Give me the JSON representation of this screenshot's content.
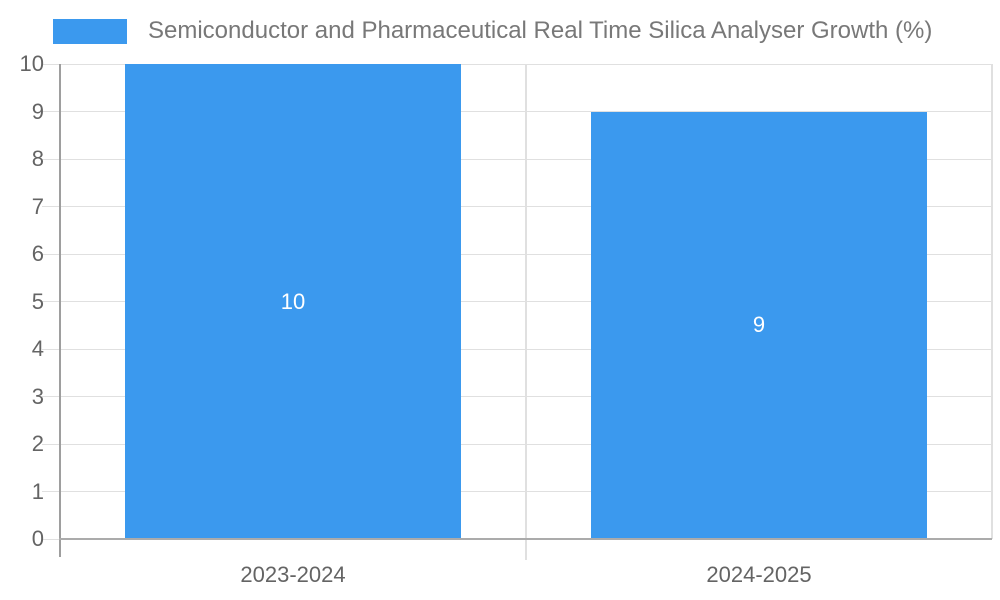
{
  "window": {
    "background": "#FFFFFF"
  },
  "legend": {
    "label": "Semiconductor and Pharmaceutical Real Time Silica Analyser Growth (%)",
    "position": "top-left"
  },
  "chart_data": {
    "type": "bar",
    "categories": [
      "2023-2024",
      "2024-2025"
    ],
    "values": [
      10,
      9
    ],
    "bar_labels": [
      "10",
      "9"
    ],
    "series": [
      {
        "name": "Semiconductor and Pharmaceutical Real Time Silica Analyser Growth (%)",
        "values": [
          10,
          9
        ]
      }
    ],
    "title": "Semiconductor and Pharmaceutical Real Time Silica Analyser Growth (%)",
    "xlabel": "",
    "ylabel": "",
    "ylim": [
      0,
      10
    ],
    "ytick_step": 1,
    "yticks": [
      0,
      1,
      2,
      3,
      4,
      5,
      6,
      7,
      8,
      9,
      10
    ],
    "grid": true,
    "legend_position": "top-left",
    "value_labels_inside_bars": true,
    "colors": {
      "bar": "#3B99EE",
      "bar_value_label": "#FFFFFF",
      "gridline": "#E0E0E0",
      "axis_line": "#9E9E9E",
      "baseline": "#ABABAB",
      "axis_text": "#646464",
      "legend_text": "#787878"
    }
  }
}
